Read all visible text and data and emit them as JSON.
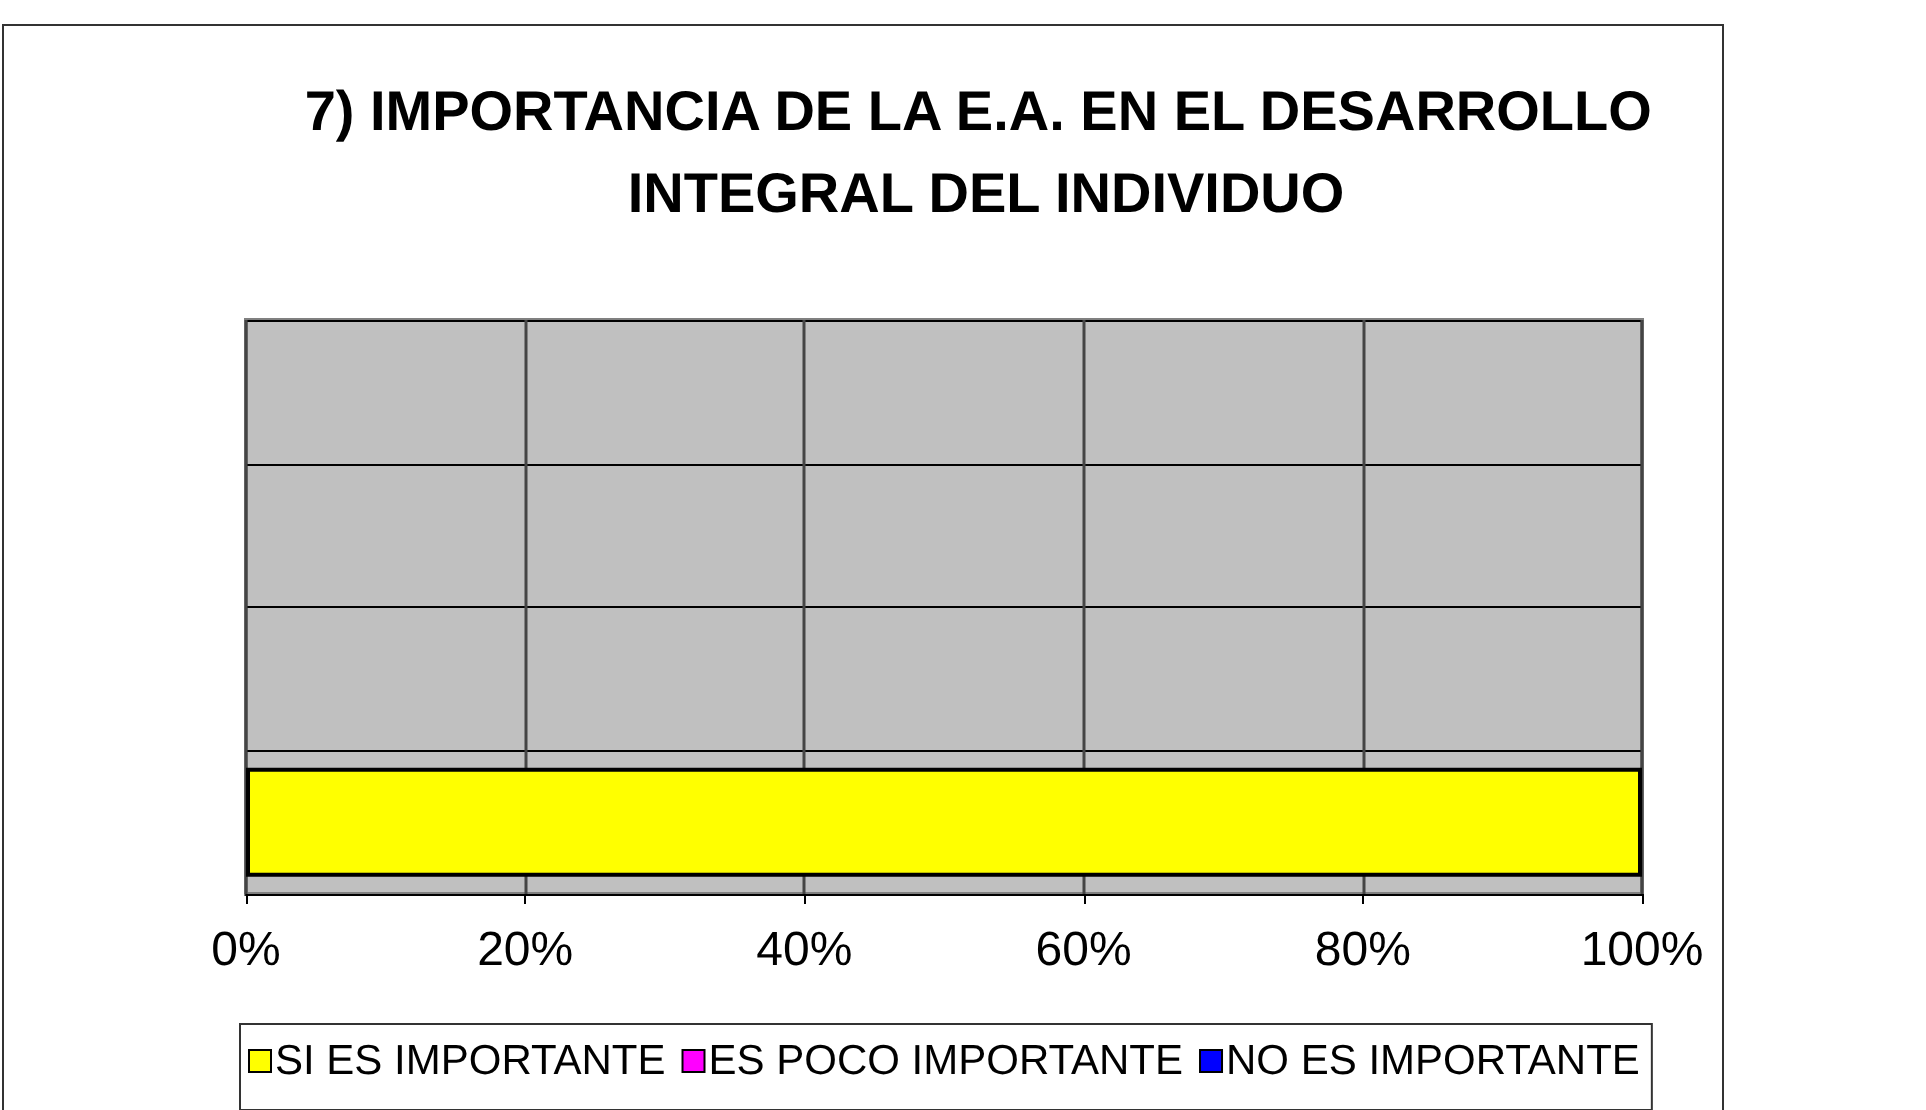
{
  "chart_data": {
    "type": "bar",
    "orientation": "horizontal",
    "stacked": true,
    "title": "7) IMPORTANCIA DE LA E.A. EN EL DESARROLLO INTEGRAL DEL INDIVIDUO",
    "categories": [
      null,
      null,
      null,
      null
    ],
    "series": [
      {
        "name": "SI ES IMPORTANTE",
        "color": "#ffff00",
        "values": [
          null,
          null,
          null,
          100
        ]
      },
      {
        "name": "ES POCO IMPORTANTE",
        "color": "#ff00ff",
        "values": [
          null,
          null,
          null,
          0
        ]
      },
      {
        "name": "NO ES IMPORTANTE",
        "color": "#0000ff",
        "values": [
          null,
          null,
          null,
          0
        ]
      }
    ],
    "xlim": [
      0,
      100
    ],
    "xticks": [
      {
        "value": 0,
        "label": "0%"
      },
      {
        "value": 20,
        "label": "20%"
      },
      {
        "value": 40,
        "label": "40%"
      },
      {
        "value": 60,
        "label": "60%"
      },
      {
        "value": 80,
        "label": "80%"
      },
      {
        "value": 100,
        "label": "100%"
      }
    ],
    "grid": true,
    "legend": "bottom"
  }
}
